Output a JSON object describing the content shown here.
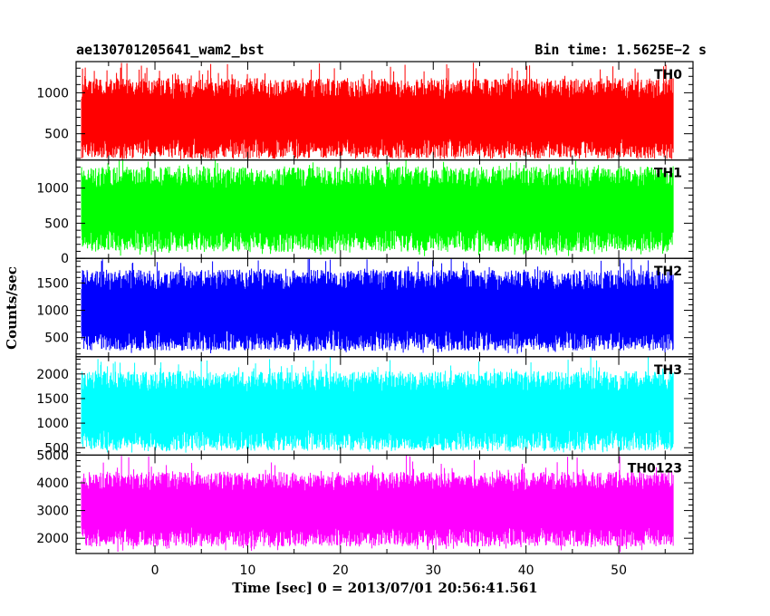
{
  "header": {
    "left_title": "ae130701205641_wam2_bst",
    "right_title": "Bin time: 1.5625E−2 s"
  },
  "chart_data": {
    "type": "line",
    "title": "ae130701205641_wam2_bst",
    "subtitle": "Bin time: 1.5625E−2 s",
    "xlabel": "Time [sec] 0 = 2013/07/01 20:56:41.561",
    "ylabel": "Counts/sec",
    "xlim": [
      -8.5,
      58
    ],
    "x_data_range": [
      -7.9,
      55.9
    ],
    "x_ticks": [
      0,
      10,
      20,
      30,
      40,
      50
    ],
    "grid": false,
    "panels": [
      {
        "name": "TH0",
        "color": "#ff0000",
        "ylim": [
          180,
          1380
        ],
        "y_ticks": [
          500,
          1000
        ],
        "typical_low": 320,
        "typical_high": 1050,
        "peak_max": 1380,
        "dip_min": 180
      },
      {
        "name": "TH1",
        "color": "#00ff00",
        "ylim": [
          0,
          1400
        ],
        "y_ticks": [
          0,
          500,
          1000
        ],
        "typical_low": 250,
        "typical_high": 1150,
        "peak_max": 1400,
        "dip_min": 30
      },
      {
        "name": "TH2",
        "color": "#0000ff",
        "ylim": [
          150,
          1950
        ],
        "y_ticks": [
          500,
          1000,
          1500
        ],
        "typical_low": 450,
        "typical_high": 1550,
        "peak_max": 1950,
        "dip_min": 200
      },
      {
        "name": "TH3",
        "color": "#00ffff",
        "ylim": [
          350,
          2350
        ],
        "y_ticks": [
          500,
          1000,
          1500,
          2000
        ],
        "typical_low": 650,
        "typical_high": 1850,
        "peak_max": 2350,
        "dip_min": 400
      },
      {
        "name": "TH0123",
        "color": "#ff00ff",
        "ylim": [
          1450,
          5000
        ],
        "y_ticks": [
          2000,
          3000,
          4000,
          5000
        ],
        "typical_low": 2050,
        "typical_high": 4050,
        "peak_max": 5000,
        "dip_min": 1500
      }
    ]
  }
}
